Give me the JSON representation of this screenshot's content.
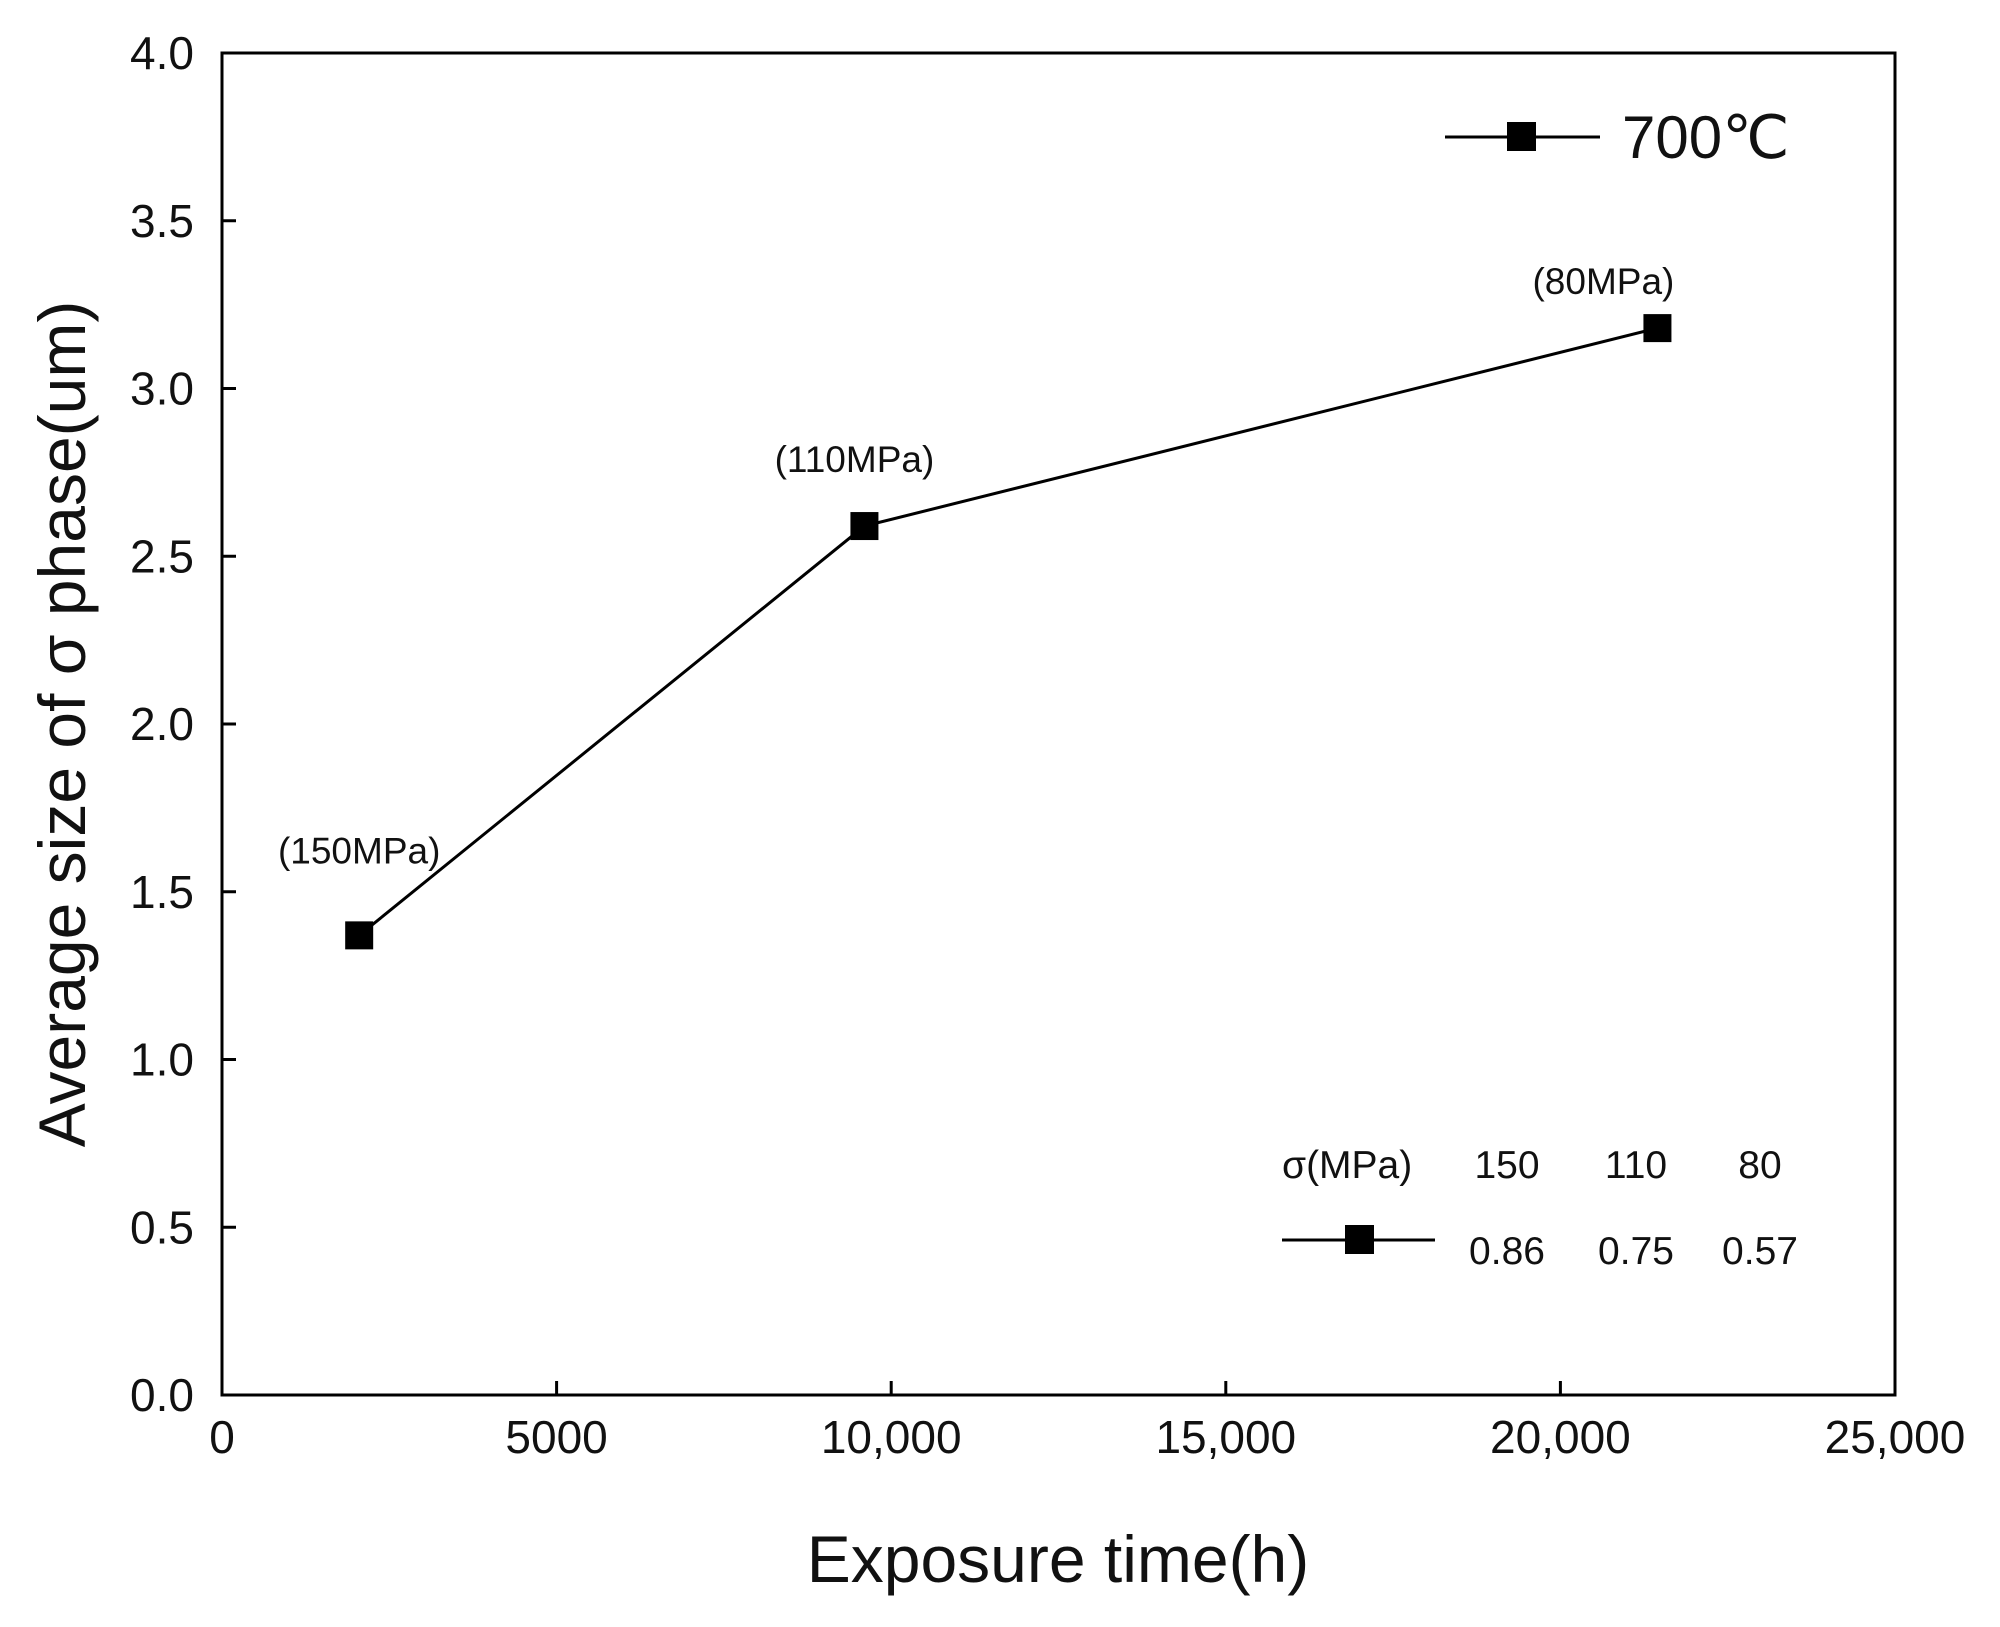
{
  "chart_data": {
    "type": "line",
    "xlabel": "Exposure time(h)",
    "ylabel": "Average size of σ phase(um)",
    "xlim": [
      0,
      25000
    ],
    "ylim": [
      0,
      4.0
    ],
    "x_ticks": [
      0,
      5000,
      10000,
      15000,
      20000,
      25000
    ],
    "x_tick_labels": [
      "0",
      "5000",
      "10,000",
      "15,000",
      "20,000",
      "25,000"
    ],
    "y_ticks": [
      0,
      0.5,
      1.0,
      1.5,
      2.0,
      2.5,
      3.0,
      3.5,
      4.0
    ],
    "y_tick_labels": [
      "0.0",
      "0.5",
      "1.0",
      "1.5",
      "2.0",
      "2.5",
      "3.0",
      "3.5",
      "4.0"
    ],
    "grid": false,
    "legend_position": "top-right",
    "series": [
      {
        "name": "700℃",
        "x": [
          2050,
          9600,
          21450
        ],
        "y": [
          1.37,
          2.59,
          3.18
        ],
        "point_labels": [
          "(150MPa)",
          "(110MPa)",
          "(80MPa)"
        ],
        "marker": "square",
        "color": "#000000"
      }
    ],
    "inset_table": {
      "header_label": "σ(MPa)",
      "header_values": [
        "150",
        "110",
        "80"
      ],
      "row_values": [
        "0.86",
        "0.75",
        "0.57"
      ]
    }
  }
}
